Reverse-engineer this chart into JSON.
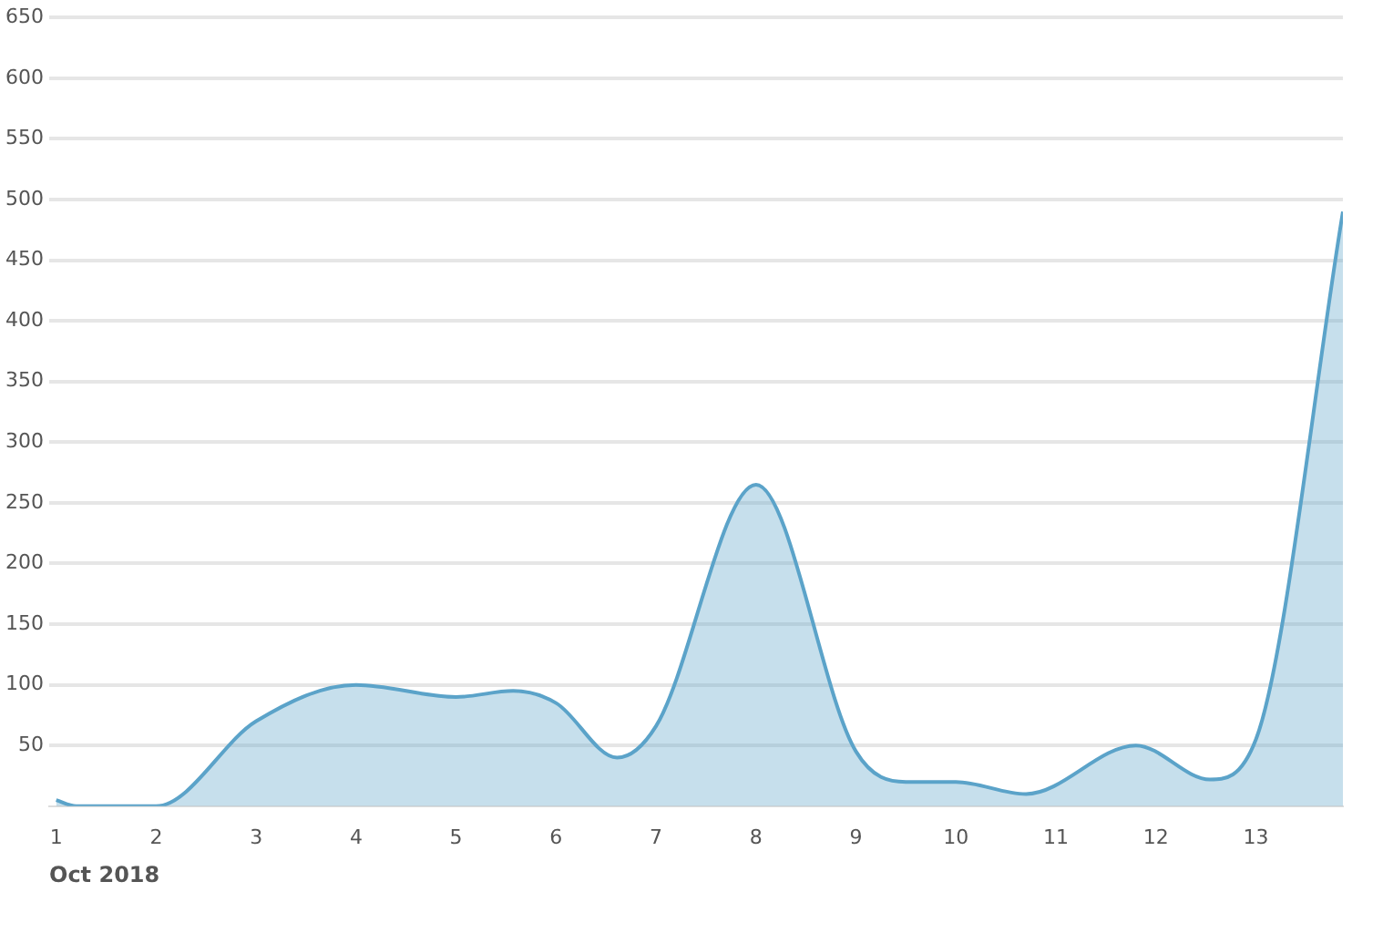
{
  "chart_data": {
    "type": "area",
    "xlabel": "Oct 2018",
    "x": [
      1,
      1.2,
      2,
      3,
      4,
      5,
      5.57,
      6,
      6.61,
      7,
      8,
      9,
      9.5,
      10,
      10.7,
      11.8,
      12.54,
      13,
      13.87
    ],
    "series": [
      {
        "color": "#5ba3c9",
        "values": [
          5,
          0,
          0,
          70,
          100,
          90,
          95,
          85,
          40,
          66,
          265,
          45,
          20,
          20,
          10,
          50,
          22,
          55,
          490
        ]
      }
    ],
    "xlim": [
      0.93,
      13.87
    ],
    "xticks": [
      1,
      2,
      3,
      4,
      5,
      6,
      7,
      8,
      9,
      10,
      11,
      12,
      13
    ],
    "ylim": [
      0,
      650
    ],
    "yticks": [
      50,
      100,
      150,
      200,
      250,
      300,
      350,
      400,
      450,
      500,
      550,
      600,
      650
    ],
    "grid": "y"
  }
}
